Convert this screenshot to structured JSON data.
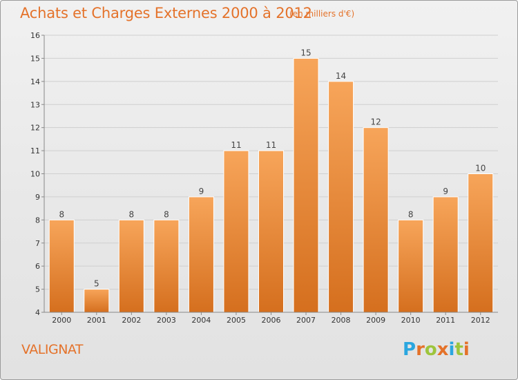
{
  "header": {
    "title": "Achats et Charges Externes 2000 à 2012",
    "unit": "(en milliers d'€)"
  },
  "footer": {
    "commune": "VALIGNAT",
    "logo": {
      "text": "Proxiti",
      "colors": [
        "#2aa6df",
        "#e4722a",
        "#9dc53c",
        "#e4722a",
        "#2aa6df",
        "#9dc53c",
        "#e4722a"
      ]
    }
  },
  "colors": {
    "bar_light": "#f7a55a",
    "bar_dark": "#d56f1e",
    "accent": "#e4722a"
  },
  "chart_data": {
    "type": "bar",
    "title": "Achats et Charges Externes 2000 à 2012",
    "categories": [
      "2000",
      "2001",
      "2002",
      "2003",
      "2004",
      "2005",
      "2006",
      "2007",
      "2008",
      "2009",
      "2010",
      "2011",
      "2012"
    ],
    "values": [
      8,
      5,
      8,
      8,
      9,
      11,
      11,
      15,
      14,
      12,
      8,
      9,
      10
    ],
    "ylim": [
      4,
      16
    ],
    "yticks": [
      4,
      5,
      6,
      7,
      8,
      9,
      10,
      11,
      12,
      13,
      14,
      15,
      16
    ],
    "grid": true,
    "data_labels": true
  }
}
